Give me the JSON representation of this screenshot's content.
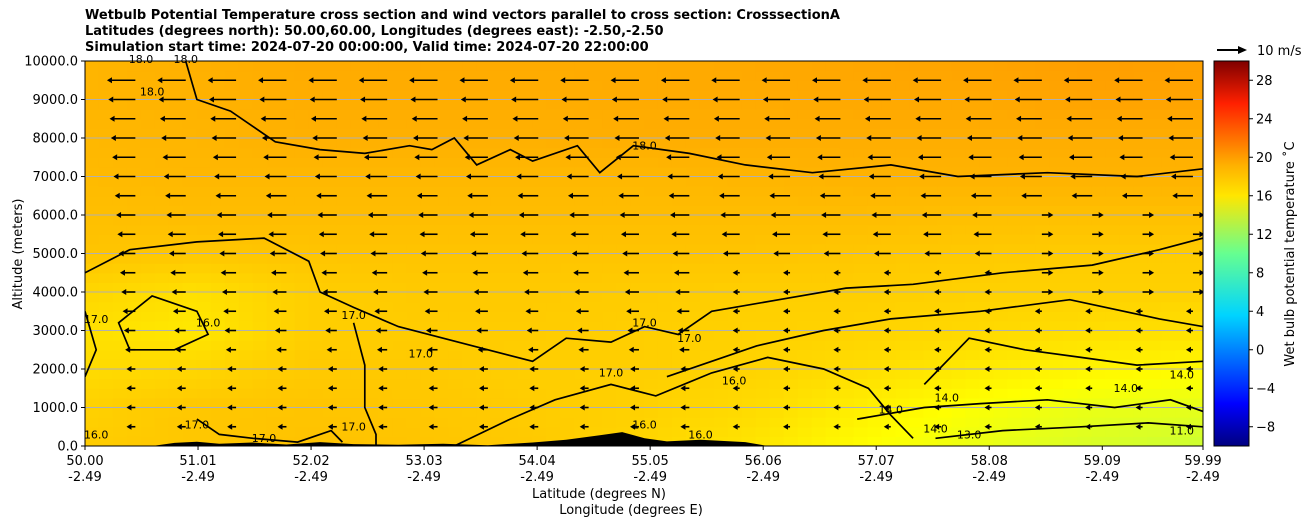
{
  "chart_data": {
    "type": "heatmap",
    "title_lines": [
      "Wetbulb Potential Temperature cross section and wind vectors parallel to cross section: CrosssectionA",
      "Latitudes (degrees north): 50.00,60.00, Longitudes (degrees east): -2.50,-2.50",
      "Simulation start time: 2024-07-20 00:00:00, Valid time: 2024-07-20 22:00:00"
    ],
    "xlabel_lines": [
      "Latitude (degrees N)",
      "Longitude (degrees E)"
    ],
    "ylabel": "Altitude (meters)",
    "x_ticks": [
      {
        "lat": "50.00",
        "lon": "-2.49",
        "value": 50.0
      },
      {
        "lat": "51.01",
        "lon": "-2.49",
        "value": 51.01
      },
      {
        "lat": "52.02",
        "lon": "-2.49",
        "value": 52.02
      },
      {
        "lat": "53.03",
        "lon": "-2.49",
        "value": 53.03
      },
      {
        "lat": "54.04",
        "lon": "-2.49",
        "value": 54.04
      },
      {
        "lat": "55.05",
        "lon": "-2.49",
        "value": 55.05
      },
      {
        "lat": "56.06",
        "lon": "-2.49",
        "value": 56.06
      },
      {
        "lat": "57.07",
        "lon": "-2.49",
        "value": 57.07
      },
      {
        "lat": "58.08",
        "lon": "-2.49",
        "value": 58.08
      },
      {
        "lat": "59.09",
        "lon": "-2.49",
        "value": 59.09
      },
      {
        "lat": "59.99",
        "lon": "-2.49",
        "value": 59.99
      }
    ],
    "xlim": [
      50.0,
      59.99
    ],
    "y_ticks": [
      "0.0",
      "1000.0",
      "2000.0",
      "3000.0",
      "4000.0",
      "5000.0",
      "6000.0",
      "7000.0",
      "8000.0",
      "9000.0",
      "10000.0"
    ],
    "ylim": [
      0,
      10000
    ],
    "grid": "horizontal",
    "colorbar": {
      "label": "Wet bulb potential temperature $^\\circ$C",
      "label_display": "Wet bulb potential temperature ˚C",
      "range": [
        -10,
        30
      ],
      "ticks": [
        "−8",
        "−4",
        "0",
        "4",
        "8",
        "12",
        "16",
        "20",
        "24",
        "28"
      ],
      "tick_values": [
        -8,
        -4,
        0,
        4,
        8,
        12,
        16,
        20,
        24,
        28
      ],
      "colormap": "jet"
    },
    "quiver_key": {
      "label": "10 m/s",
      "value": 10
    },
    "field_estimate": {
      "x_lat": [
        50.0,
        51.0,
        52.0,
        53.0,
        54.0,
        55.0,
        56.0,
        57.0,
        58.0,
        59.0,
        60.0
      ],
      "y_alt": [
        0,
        1000,
        2000,
        3000,
        4000,
        5000,
        6000,
        7000,
        8000,
        9000,
        10000
      ],
      "values": [
        [
          17.0,
          17.2,
          17.4,
          17.3,
          17.1,
          16.6,
          16.0,
          15.0,
          14.2,
          13.5,
          13.0
        ],
        [
          16.8,
          17.2,
          17.3,
          17.2,
          17.0,
          16.8,
          16.4,
          15.6,
          14.8,
          14.2,
          14.0
        ],
        [
          16.4,
          16.6,
          17.1,
          17.1,
          16.9,
          16.9,
          16.7,
          16.3,
          15.8,
          15.4,
          15.2
        ],
        [
          16.2,
          15.9,
          16.9,
          17.0,
          17.0,
          16.9,
          16.8,
          16.7,
          16.5,
          16.3,
          16.2
        ],
        [
          16.6,
          16.2,
          16.9,
          17.1,
          17.1,
          17.0,
          16.9,
          16.9,
          16.8,
          16.8,
          16.8
        ],
        [
          17.3,
          17.2,
          17.3,
          17.3,
          17.3,
          17.3,
          17.3,
          17.2,
          17.1,
          17.0,
          17.0
        ],
        [
          17.5,
          17.6,
          17.6,
          17.6,
          17.6,
          17.6,
          17.6,
          17.6,
          17.5,
          17.5,
          17.5
        ],
        [
          17.7,
          17.8,
          17.8,
          17.8,
          17.8,
          17.8,
          17.9,
          18.0,
          18.0,
          18.0,
          18.0
        ],
        [
          17.8,
          17.9,
          18.1,
          18.1,
          18.1,
          18.2,
          18.2,
          18.2,
          18.2,
          18.2,
          18.2
        ],
        [
          17.9,
          18.0,
          18.2,
          18.2,
          18.2,
          18.3,
          18.3,
          18.4,
          18.4,
          18.6,
          18.6
        ],
        [
          17.9,
          18.1,
          18.3,
          18.3,
          18.3,
          18.3,
          18.4,
          18.5,
          18.6,
          18.8,
          18.7
        ]
      ]
    },
    "contour_labels": [
      {
        "text": "16.0",
        "lat": 50.1,
        "alt": 200
      },
      {
        "text": "17.0",
        "lat": 50.1,
        "alt": 3200
      },
      {
        "text": "16.0",
        "lat": 51.1,
        "alt": 3100
      },
      {
        "text": "18.0",
        "lat": 50.6,
        "alt": 9100
      },
      {
        "text": "18.0",
        "lat": 50.5,
        "alt": 9950
      },
      {
        "text": "18.0",
        "lat": 50.9,
        "alt": 9950
      },
      {
        "text": "17.0",
        "lat": 52.4,
        "alt": 3300
      },
      {
        "text": "17.0",
        "lat": 53.0,
        "alt": 2300
      },
      {
        "text": "17.0",
        "lat": 51.0,
        "alt": 450
      },
      {
        "text": "17.0",
        "lat": 51.6,
        "alt": 100
      },
      {
        "text": "17.0",
        "lat": 52.4,
        "alt": 400
      },
      {
        "text": "18.0",
        "lat": 55.0,
        "alt": 7700
      },
      {
        "text": "17.0",
        "lat": 55.0,
        "alt": 3100
      },
      {
        "text": "17.0",
        "lat": 55.4,
        "alt": 2700
      },
      {
        "text": "17.0",
        "lat": 54.7,
        "alt": 1800
      },
      {
        "text": "16.0",
        "lat": 55.8,
        "alt": 1600
      },
      {
        "text": "16.0",
        "lat": 55.0,
        "alt": 450
      },
      {
        "text": "16.0",
        "lat": 55.5,
        "alt": 200
      },
      {
        "text": "14.0",
        "lat": 57.2,
        "alt": 850
      },
      {
        "text": "14.0",
        "lat": 57.7,
        "alt": 1150
      },
      {
        "text": "14.0",
        "lat": 57.6,
        "alt": 350
      },
      {
        "text": "13.0",
        "lat": 57.9,
        "alt": 200
      },
      {
        "text": "14.0",
        "lat": 59.3,
        "alt": 1400
      },
      {
        "text": "14.0",
        "lat": 59.8,
        "alt": 1750
      },
      {
        "text": "11.0",
        "lat": 59.8,
        "alt": 300
      }
    ]
  }
}
